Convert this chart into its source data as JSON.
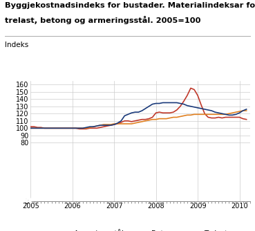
{
  "title_line1": "Byggjekostnadsindeks for bustader. Materialindeksar for",
  "title_line2": "trelast, betong og armeringsstål. 2005=100",
  "indeks_label": "Indeks",
  "background_color": "#ffffff",
  "grid_color": "#cccccc",
  "ylim_bottom": 0,
  "ylim_top": 165,
  "yticks": [
    0,
    80,
    90,
    100,
    110,
    120,
    130,
    140,
    150,
    160
  ],
  "xlim_left": 2005.0,
  "xlim_right": 2010.25,
  "armeringsstaal_color": "#c0392b",
  "betong_color": "#e08020",
  "trelast_color": "#1a3a7a",
  "armeringsstaal_x": [
    2005.0,
    2005.083,
    2005.167,
    2005.25,
    2005.333,
    2005.417,
    2005.5,
    2005.583,
    2005.667,
    2005.75,
    2005.833,
    2005.917,
    2006.0,
    2006.083,
    2006.167,
    2006.25,
    2006.333,
    2006.417,
    2006.5,
    2006.583,
    2006.667,
    2006.75,
    2006.833,
    2006.917,
    2007.0,
    2007.083,
    2007.167,
    2007.25,
    2007.333,
    2007.417,
    2007.5,
    2007.583,
    2007.667,
    2007.75,
    2007.833,
    2007.917,
    2008.0,
    2008.083,
    2008.167,
    2008.25,
    2008.333,
    2008.417,
    2008.5,
    2008.583,
    2008.667,
    2008.75,
    2008.833,
    2008.917,
    2009.0,
    2009.083,
    2009.167,
    2009.25,
    2009.333,
    2009.417,
    2009.5,
    2009.583,
    2009.667,
    2009.75,
    2009.833,
    2009.917,
    2010.0,
    2010.083,
    2010.167
  ],
  "armeringsstaal_y": [
    102,
    102,
    101,
    101,
    100,
    100,
    100,
    100,
    100,
    100,
    100,
    100,
    100,
    100,
    99,
    99,
    99,
    100,
    100,
    100,
    101,
    102,
    103,
    104,
    105,
    106,
    108,
    110,
    110,
    109,
    110,
    111,
    112,
    112,
    113,
    115,
    121,
    122,
    121,
    121,
    121,
    122,
    125,
    130,
    137,
    145,
    155,
    153,
    145,
    132,
    120,
    115,
    114,
    114,
    115,
    114,
    115,
    115,
    115,
    115,
    115,
    113,
    112
  ],
  "betong_x": [
    2005.0,
    2005.083,
    2005.167,
    2005.25,
    2005.333,
    2005.417,
    2005.5,
    2005.583,
    2005.667,
    2005.75,
    2005.833,
    2005.917,
    2006.0,
    2006.083,
    2006.167,
    2006.25,
    2006.333,
    2006.417,
    2006.5,
    2006.583,
    2006.667,
    2006.75,
    2006.833,
    2006.917,
    2007.0,
    2007.083,
    2007.167,
    2007.25,
    2007.333,
    2007.417,
    2007.5,
    2007.583,
    2007.667,
    2007.75,
    2007.833,
    2007.917,
    2008.0,
    2008.083,
    2008.167,
    2008.25,
    2008.333,
    2008.417,
    2008.5,
    2008.583,
    2008.667,
    2008.75,
    2008.833,
    2008.917,
    2009.0,
    2009.083,
    2009.167,
    2009.25,
    2009.333,
    2009.417,
    2009.5,
    2009.583,
    2009.667,
    2009.75,
    2009.833,
    2009.917,
    2010.0,
    2010.083,
    2010.167
  ],
  "betong_y": [
    100,
    100,
    100,
    100,
    100,
    100,
    100,
    100,
    100,
    100,
    100,
    100,
    100,
    100,
    100,
    100,
    100,
    101,
    102,
    103,
    104,
    105,
    105,
    105,
    106,
    106,
    106,
    106,
    106,
    106,
    107,
    108,
    109,
    110,
    111,
    112,
    112,
    113,
    113,
    113,
    114,
    115,
    115,
    116,
    117,
    118,
    118,
    119,
    119,
    119,
    119,
    119,
    119,
    119,
    119,
    119,
    119,
    120,
    121,
    122,
    123,
    124,
    124
  ],
  "trelast_x": [
    2005.0,
    2005.083,
    2005.167,
    2005.25,
    2005.333,
    2005.417,
    2005.5,
    2005.583,
    2005.667,
    2005.75,
    2005.833,
    2005.917,
    2006.0,
    2006.083,
    2006.167,
    2006.25,
    2006.333,
    2006.417,
    2006.5,
    2006.583,
    2006.667,
    2006.75,
    2006.833,
    2006.917,
    2007.0,
    2007.083,
    2007.167,
    2007.25,
    2007.333,
    2007.417,
    2007.5,
    2007.583,
    2007.667,
    2007.75,
    2007.833,
    2007.917,
    2008.0,
    2008.083,
    2008.167,
    2008.25,
    2008.333,
    2008.417,
    2008.5,
    2008.583,
    2008.667,
    2008.75,
    2008.833,
    2008.917,
    2009.0,
    2009.083,
    2009.167,
    2009.25,
    2009.333,
    2009.417,
    2009.5,
    2009.583,
    2009.667,
    2009.75,
    2009.833,
    2009.917,
    2010.0,
    2010.083,
    2010.167
  ],
  "trelast_y": [
    100,
    100,
    100,
    100,
    100,
    100,
    100,
    100,
    100,
    100,
    100,
    100,
    100,
    100,
    100,
    100,
    101,
    102,
    102,
    103,
    104,
    104,
    104,
    104,
    105,
    107,
    110,
    117,
    119,
    121,
    122,
    122,
    124,
    127,
    130,
    133,
    134,
    134,
    135,
    135,
    135,
    135,
    135,
    134,
    133,
    131,
    130,
    129,
    128,
    127,
    126,
    125,
    124,
    122,
    121,
    120,
    119,
    118,
    118,
    119,
    121,
    124,
    126
  ],
  "legend_labels": [
    "Armeringsstål",
    "Betong",
    "Trelast"
  ],
  "xtick_labels": [
    "2005",
    "2006",
    "2007",
    "2008",
    "2009",
    "2010"
  ],
  "xtick_positions": [
    2005,
    2006,
    2007,
    2008,
    2009,
    2010
  ]
}
